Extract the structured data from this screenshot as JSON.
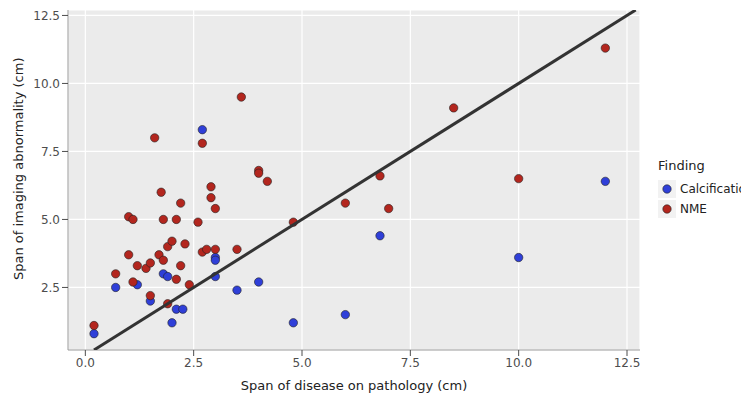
{
  "chart_data": {
    "type": "scatter",
    "x_label": "Span of disease on pathology (cm)",
    "y_label": "Span of imaging abnormality (cm)",
    "legend_title": "Finding",
    "legend": "right",
    "grid": true,
    "xlim": [
      -0.4,
      12.8
    ],
    "ylim": [
      0.2,
      12.7
    ],
    "xticks": [
      {
        "value": 0,
        "label": "0.0"
      },
      2.5,
      {
        "value": 5,
        "label": "5.0"
      },
      {
        "value": 7.5,
        "label": "7.5"
      },
      {
        "value": 10,
        "label": "10.0"
      },
      12.5
    ],
    "yticks": [
      2.5,
      {
        "value": 5,
        "label": "5.0"
      },
      7.5,
      {
        "value": 10,
        "label": "10.0"
      },
      12.5
    ],
    "series": [
      {
        "name": "Calcifications",
        "color": "#2f3fd8",
        "marker": "circle",
        "x": [
          0.2,
          0.7,
          1.2,
          1.5,
          1.8,
          1.9,
          2.0,
          2.1,
          2.25,
          2.7,
          3.0,
          3.0,
          3.0,
          3.5,
          4.0,
          4.8,
          6.0,
          6.8,
          10.0,
          12.0
        ],
        "y": [
          0.8,
          2.5,
          2.6,
          2.0,
          3.0,
          2.9,
          1.2,
          1.7,
          1.7,
          8.3,
          3.6,
          3.5,
          2.9,
          2.4,
          2.7,
          1.2,
          1.5,
          4.4,
          3.6,
          6.4
        ]
      },
      {
        "name": "NME",
        "color": "#b3261e",
        "marker": "circle",
        "x": [
          0.2,
          0.7,
          1.0,
          1.0,
          1.1,
          1.1,
          1.2,
          1.4,
          1.5,
          1.5,
          1.6,
          1.7,
          1.75,
          1.8,
          1.8,
          1.9,
          1.9,
          2.0,
          2.1,
          2.1,
          2.2,
          2.2,
          2.3,
          2.4,
          2.6,
          2.7,
          2.7,
          2.8,
          2.9,
          2.9,
          3.0,
          3.0,
          3.5,
          3.6,
          4.0,
          4.0,
          4.2,
          4.8,
          6.0,
          6.8,
          7.0,
          8.5,
          10.0,
          12.0
        ],
        "y": [
          1.1,
          3.0,
          3.7,
          5.1,
          5.0,
          2.7,
          3.3,
          3.2,
          3.4,
          2.2,
          8.0,
          3.7,
          6.0,
          5.0,
          3.5,
          4.0,
          1.9,
          4.2,
          5.0,
          2.8,
          5.6,
          3.3,
          4.1,
          2.6,
          4.9,
          3.8,
          7.8,
          3.9,
          6.2,
          5.8,
          5.4,
          3.9,
          3.9,
          9.5,
          6.8,
          6.7,
          6.4,
          4.9,
          5.6,
          6.6,
          5.4,
          9.1,
          6.5,
          11.3
        ]
      }
    ],
    "line": {
      "x": [
        0.2,
        12.7
      ],
      "y": [
        0.2,
        12.7
      ],
      "color": "#333333",
      "line_style": "solid"
    }
  }
}
